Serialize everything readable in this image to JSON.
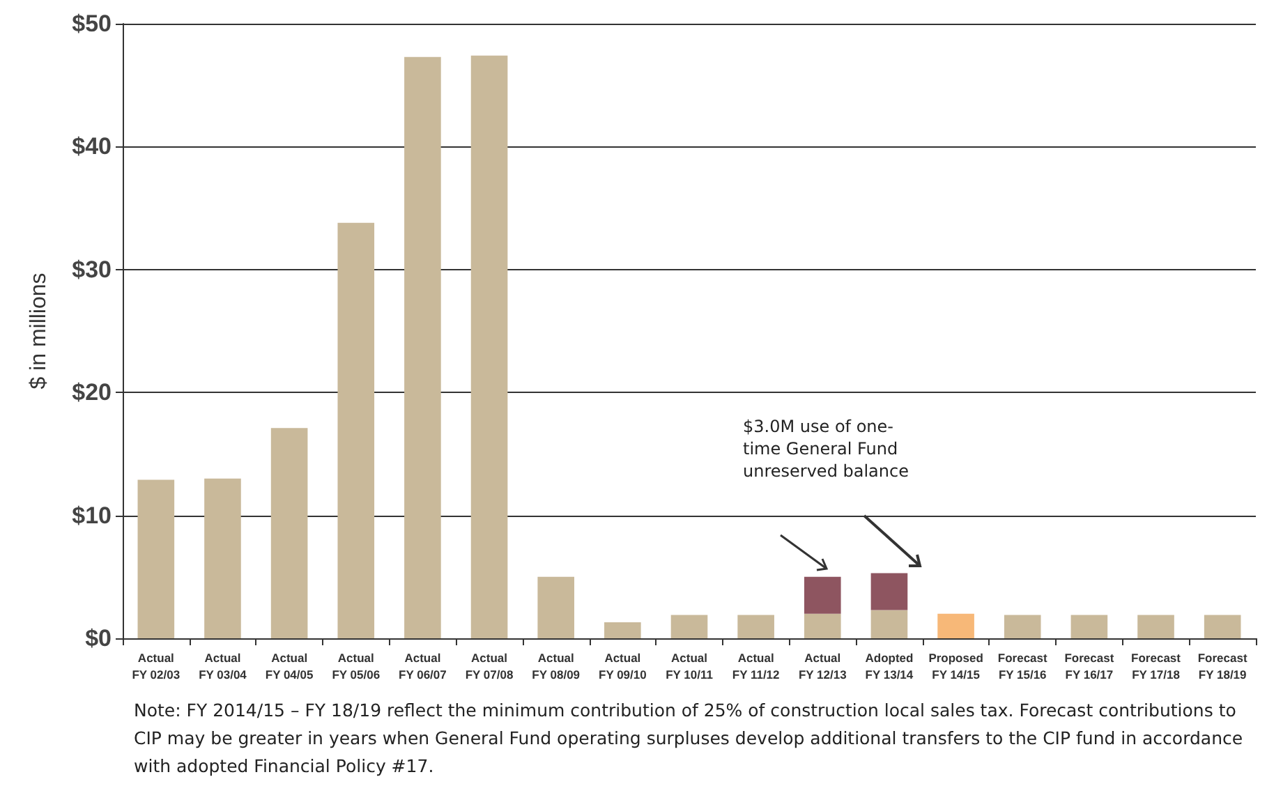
{
  "chart_data": {
    "type": "bar",
    "ylabel": "$ in millions",
    "categories": [
      "Actual\nFY 02/03",
      "Actual\nFY 03/04",
      "Actual\nFY 04/05",
      "Actual\nFY 05/06",
      "Actual\nFY 06/07",
      "Actual\nFY 07/08",
      "Actual\nFY 08/09",
      "Actual\nFY 09/10",
      "Actual\nFY 10/11",
      "Actual\nFY 11/12",
      "Actual\nFY 12/13",
      "Adopted\nFY 13/14",
      "Proposed\nFY 14/15",
      "Forecast\nFY 15/16",
      "Forecast\nFY 16/17",
      "Forecast\nFY 17/18",
      "Forecast\nFY 18/19"
    ],
    "stacked": true,
    "series": [
      {
        "color": "#c9b99a",
        "colors": [
          "#c9b99a",
          "#c9b99a",
          "#c9b99a",
          "#c9b99a",
          "#c9b99a",
          "#c9b99a",
          "#c9b99a",
          "#c9b99a",
          "#c9b99a",
          "#c9b99a",
          "#c9b99a",
          "#c9b99a",
          "#f7b878",
          "#c9b99a",
          "#c9b99a",
          "#c9b99a",
          "#c9b99a"
        ],
        "values": [
          12.9,
          13.0,
          17.1,
          33.8,
          47.3,
          47.4,
          5.0,
          1.3,
          1.9,
          1.9,
          2.0,
          2.3,
          2.0,
          1.9,
          1.9,
          1.9,
          1.9
        ]
      },
      {
        "color": "#8e5560",
        "values": [
          null,
          null,
          null,
          null,
          null,
          null,
          null,
          null,
          null,
          null,
          3.0,
          3.0,
          null,
          null,
          null,
          null,
          null
        ]
      }
    ],
    "ylim": [
      0,
      50
    ],
    "yticks": [
      {
        "value": 0,
        "label": "$0"
      },
      {
        "value": 10,
        "label": "$10"
      },
      {
        "value": 20,
        "label": "$20"
      },
      {
        "value": 30,
        "label": "$30"
      },
      {
        "value": 40,
        "label": "$40"
      },
      {
        "value": 50,
        "label": "$50"
      }
    ],
    "grid": "y",
    "annotations": [
      "$3.0M use of one-time General Fund unreserved balance",
      "Note: FY 2014/15 – FY 18/19 reflect the minimum contribution of 25% of construction local sales tax.  Forecast contributions to CIP may be greater in years when General Fund operating surpluses develop additional transfers to the CIP fund in accordance with adopted Financial Policy #17."
    ]
  }
}
